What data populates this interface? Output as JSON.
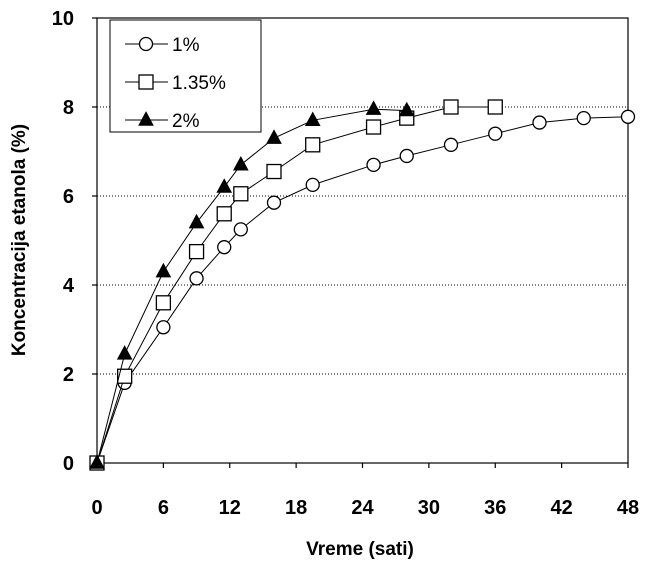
{
  "chart_data": {
    "type": "line",
    "title": "",
    "xlabel": "Vreme (sati)",
    "ylabel": "Koncentracija etanola (%)",
    "xlim": [
      0,
      48
    ],
    "ylim": [
      0,
      10
    ],
    "xticks": [
      "0",
      "6",
      "12",
      "18",
      "24",
      "30",
      "36",
      "42",
      "48"
    ],
    "yticks": [
      "0",
      "2",
      "4",
      "6",
      "8",
      "10"
    ],
    "grid": "horizontal dotted",
    "legend_position": "top-left",
    "series": [
      {
        "name": "1%",
        "marker": "open-circle",
        "x": [
          0,
          2.5,
          6,
          9,
          11.5,
          13,
          16,
          19.5,
          25,
          28,
          32,
          36,
          40,
          44,
          48
        ],
        "y": [
          0,
          1.8,
          3.05,
          4.15,
          4.85,
          5.25,
          5.85,
          6.25,
          6.7,
          6.9,
          7.15,
          7.4,
          7.65,
          7.75,
          7.78
        ]
      },
      {
        "name": "1.35%",
        "marker": "open-square",
        "x": [
          0,
          2.5,
          6,
          9,
          11.5,
          13,
          16,
          19.5,
          25,
          28,
          32,
          36
        ],
        "y": [
          0,
          1.95,
          3.6,
          4.75,
          5.6,
          6.05,
          6.55,
          7.15,
          7.55,
          7.75,
          8.0,
          8.0
        ]
      },
      {
        "name": "2%",
        "marker": "filled-triangle",
        "x": [
          0,
          2.5,
          6,
          9,
          11.5,
          13,
          16,
          19.5,
          25,
          28
        ],
        "y": [
          0,
          2.45,
          4.3,
          5.4,
          6.2,
          6.7,
          7.3,
          7.7,
          7.95,
          7.92
        ]
      }
    ]
  }
}
